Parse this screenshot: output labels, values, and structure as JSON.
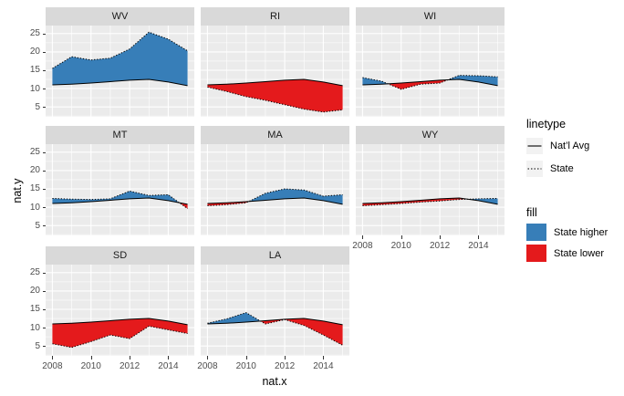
{
  "colors": {
    "state_higher_blue": "#377EB8",
    "state_lower_red": "#E41A1C",
    "panel_background": "#EBEBEB",
    "strip_background": "#D9D9D9",
    "gridline": "#FFFFFF",
    "line_color": "#000000",
    "axis_text": "#4D4D4D",
    "legend_key_background": "#F2F2F2"
  },
  "axes": {
    "x_title": "nat.x",
    "y_title": "nat.y",
    "x_tick_labels": [
      "2008",
      "2010",
      "2012",
      "2014"
    ],
    "y_tick_labels": [
      "25",
      "20",
      "15",
      "10",
      "5"
    ]
  },
  "legend": {
    "linetype": {
      "title": "linetype",
      "items": [
        {
          "label": "Nat’l Avg",
          "linestyle": "solid"
        },
        {
          "label": "State",
          "linestyle": "dotted"
        }
      ]
    },
    "fill": {
      "title": "fill",
      "items": [
        {
          "label": "State higher",
          "color": "#377EB8"
        },
        {
          "label": "State lower",
          "color": "#E41A1C"
        }
      ]
    }
  },
  "chart_data": {
    "type": "area",
    "xlabel": "nat.x",
    "ylabel": "nat.y",
    "x": [
      2008,
      2009,
      2010,
      2011,
      2012,
      2013,
      2014,
      2015
    ],
    "x_range": [
      2007.65,
      2015.35
    ],
    "y_range": [
      2.3,
      27.2
    ],
    "x_ticks": [
      2008,
      2010,
      2012,
      2014
    ],
    "y_ticks": [
      5,
      10,
      15,
      20,
      25
    ],
    "x_minor_gridlines": [
      2009,
      2011,
      2013,
      2015
    ],
    "y_minor_gridlines": [
      2.5,
      7.5,
      12.5,
      17.5,
      22.5
    ],
    "grid": true,
    "legend_position": "right",
    "national_avg": {
      "name": "Nat’l Avg",
      "values": [
        11.0,
        11.2,
        11.5,
        11.9,
        12.3,
        12.5,
        11.8,
        10.8
      ]
    },
    "facets": [
      {
        "state": "WV",
        "state_values": [
          15.5,
          18.7,
          17.8,
          18.3,
          20.8,
          25.4,
          23.5,
          20.3
        ]
      },
      {
        "state": "RI",
        "state_values": [
          10.4,
          9.2,
          7.8,
          6.8,
          5.6,
          4.4,
          3.6,
          4.2
        ]
      },
      {
        "state": "WI",
        "state_values": [
          13.0,
          12.0,
          9.8,
          11.2,
          11.5,
          13.6,
          13.5,
          13.2
        ]
      },
      {
        "state": "MT",
        "state_values": [
          12.4,
          12.2,
          12.1,
          12.3,
          14.4,
          13.2,
          13.4,
          9.6
        ]
      },
      {
        "state": "MA",
        "state_values": [
          10.4,
          10.7,
          11.2,
          13.8,
          15.0,
          14.7,
          13.0,
          13.4
        ]
      },
      {
        "state": "WY",
        "state_values": [
          10.4,
          10.7,
          11.0,
          11.4,
          11.7,
          12.1,
          12.3,
          12.4
        ]
      },
      {
        "state": "SD",
        "state_values": [
          5.6,
          4.6,
          6.2,
          8.0,
          7.0,
          10.4,
          9.4,
          8.4
        ]
      },
      {
        "state": "LA",
        "state_values": [
          11.2,
          12.4,
          14.1,
          11.0,
          12.2,
          10.6,
          8.0,
          5.2
        ]
      }
    ],
    "fill_rule": {
      "state_higher": "blue",
      "state_lower": "red"
    },
    "linetype_rule": {
      "national_avg": "solid",
      "state": "dotted"
    }
  }
}
